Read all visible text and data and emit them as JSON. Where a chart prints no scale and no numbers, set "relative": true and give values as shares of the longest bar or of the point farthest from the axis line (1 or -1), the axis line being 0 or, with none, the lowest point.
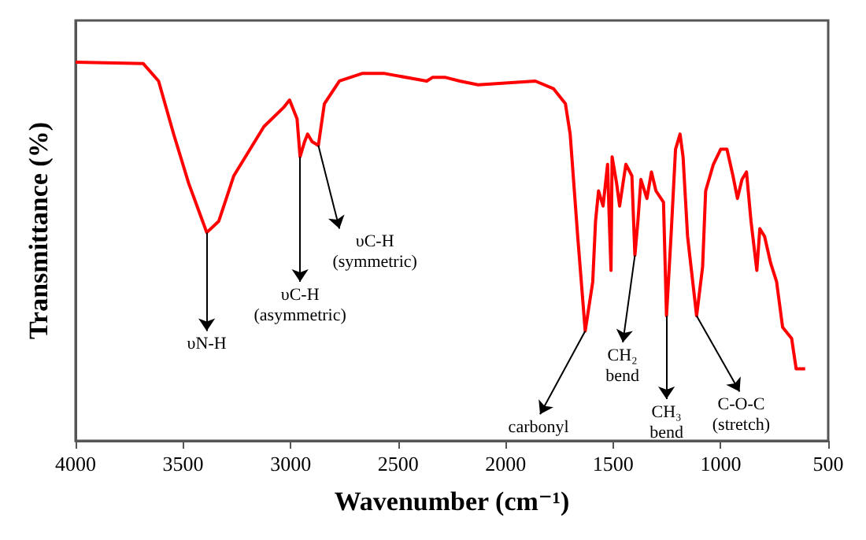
{
  "chart_data": {
    "type": "line",
    "relative": true,
    "xlabel": "Wavenumber (cm⁻¹)",
    "ylabel": "Transmittance (%)",
    "xlim": [
      4000,
      500
    ],
    "xticks": [
      4000,
      3500,
      3000,
      2500,
      2000,
      1500,
      1000,
      500
    ],
    "grid": false,
    "marker": "none",
    "line_style": "solid",
    "series": [
      {
        "color": "#ff0000",
        "x": [
          4000,
          3685,
          3614,
          3544,
          3474,
          3390,
          3334,
          3264,
          3124,
          3033,
          3005,
          2970,
          2956,
          2935,
          2921,
          2900,
          2871,
          2843,
          2773,
          2668,
          2563,
          2367,
          2339,
          2283,
          2213,
          2128,
          1862,
          1778,
          1722,
          1700,
          1665,
          1630,
          1595,
          1582,
          1568,
          1547,
          1526,
          1519,
          1510,
          1505,
          1484,
          1470,
          1441,
          1413,
          1399,
          1385,
          1371,
          1343,
          1322,
          1301,
          1266,
          1252,
          1231,
          1210,
          1189,
          1175,
          1154,
          1112,
          1084,
          1070,
          1034,
          1000,
          971,
          943,
          922,
          901,
          880,
          859,
          832,
          818,
          796,
          768,
          740,
          712,
          670,
          649,
          607
        ],
        "values": [
          1.0,
          0.996,
          0.95,
          0.81,
          0.68,
          0.55,
          0.58,
          0.7,
          0.83,
          0.88,
          0.9,
          0.85,
          0.75,
          0.79,
          0.81,
          0.79,
          0.78,
          0.89,
          0.95,
          0.97,
          0.97,
          0.95,
          0.96,
          0.96,
          0.95,
          0.94,
          0.95,
          0.93,
          0.89,
          0.81,
          0.54,
          0.29,
          0.42,
          0.58,
          0.66,
          0.62,
          0.73,
          0.6,
          0.45,
          0.75,
          0.68,
          0.62,
          0.73,
          0.7,
          0.49,
          0.58,
          0.69,
          0.64,
          0.71,
          0.66,
          0.63,
          0.33,
          0.54,
          0.77,
          0.81,
          0.75,
          0.54,
          0.33,
          0.46,
          0.66,
          0.73,
          0.77,
          0.77,
          0.7,
          0.64,
          0.69,
          0.71,
          0.58,
          0.45,
          0.56,
          0.54,
          0.47,
          0.42,
          0.3,
          0.27,
          0.19,
          0.19
        ]
      }
    ],
    "annotations": [
      {
        "text": "υN-H",
        "x": 3390,
        "y": 0.55
      },
      {
        "text": "υC-H\n(asymmetric)",
        "x": 2956,
        "y": 0.75
      },
      {
        "text": "υC-H\n(symmetric)",
        "x": 2871,
        "y": 0.78
      },
      {
        "text": "carbonyl",
        "x": 1630,
        "y": 0.29
      },
      {
        "text": "CH₂\nbend",
        "x": 1399,
        "y": 0.49
      },
      {
        "text": "CH₃\nbend",
        "x": 1252,
        "y": 0.33
      },
      {
        "text": "C-O-C\n(stretch)",
        "x": 1112,
        "y": 0.33
      }
    ]
  }
}
